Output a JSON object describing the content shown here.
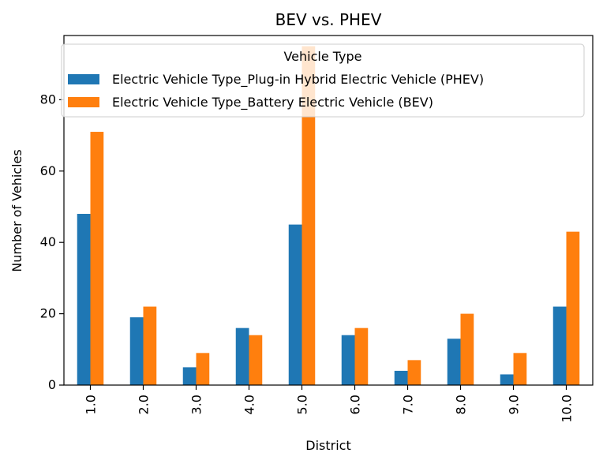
{
  "chart_data": {
    "type": "bar",
    "title": "BEV vs. PHEV",
    "xlabel": "District",
    "ylabel": "Number of Vehicles",
    "categories": [
      "1.0",
      "2.0",
      "3.0",
      "4.0",
      "5.0",
      "6.0",
      "7.0",
      "8.0",
      "9.0",
      "10.0"
    ],
    "series": [
      {
        "name": "Electric Vehicle Type_Plug-in Hybrid Electric Vehicle (PHEV)",
        "color": "#1f77b4",
        "values": [
          48,
          19,
          5,
          16,
          45,
          14,
          4,
          13,
          3,
          22
        ]
      },
      {
        "name": "Electric Vehicle Type_Battery Electric Vehicle (BEV)",
        "color": "#ff7f0e",
        "values": [
          71,
          22,
          9,
          14,
          95,
          16,
          7,
          20,
          9,
          43
        ]
      }
    ],
    "ylim": [
      0,
      98
    ],
    "yticks": [
      0,
      20,
      40,
      60,
      80
    ],
    "legend": {
      "title": "Vehicle Type",
      "placement": "upper-right"
    },
    "grid": false
  }
}
